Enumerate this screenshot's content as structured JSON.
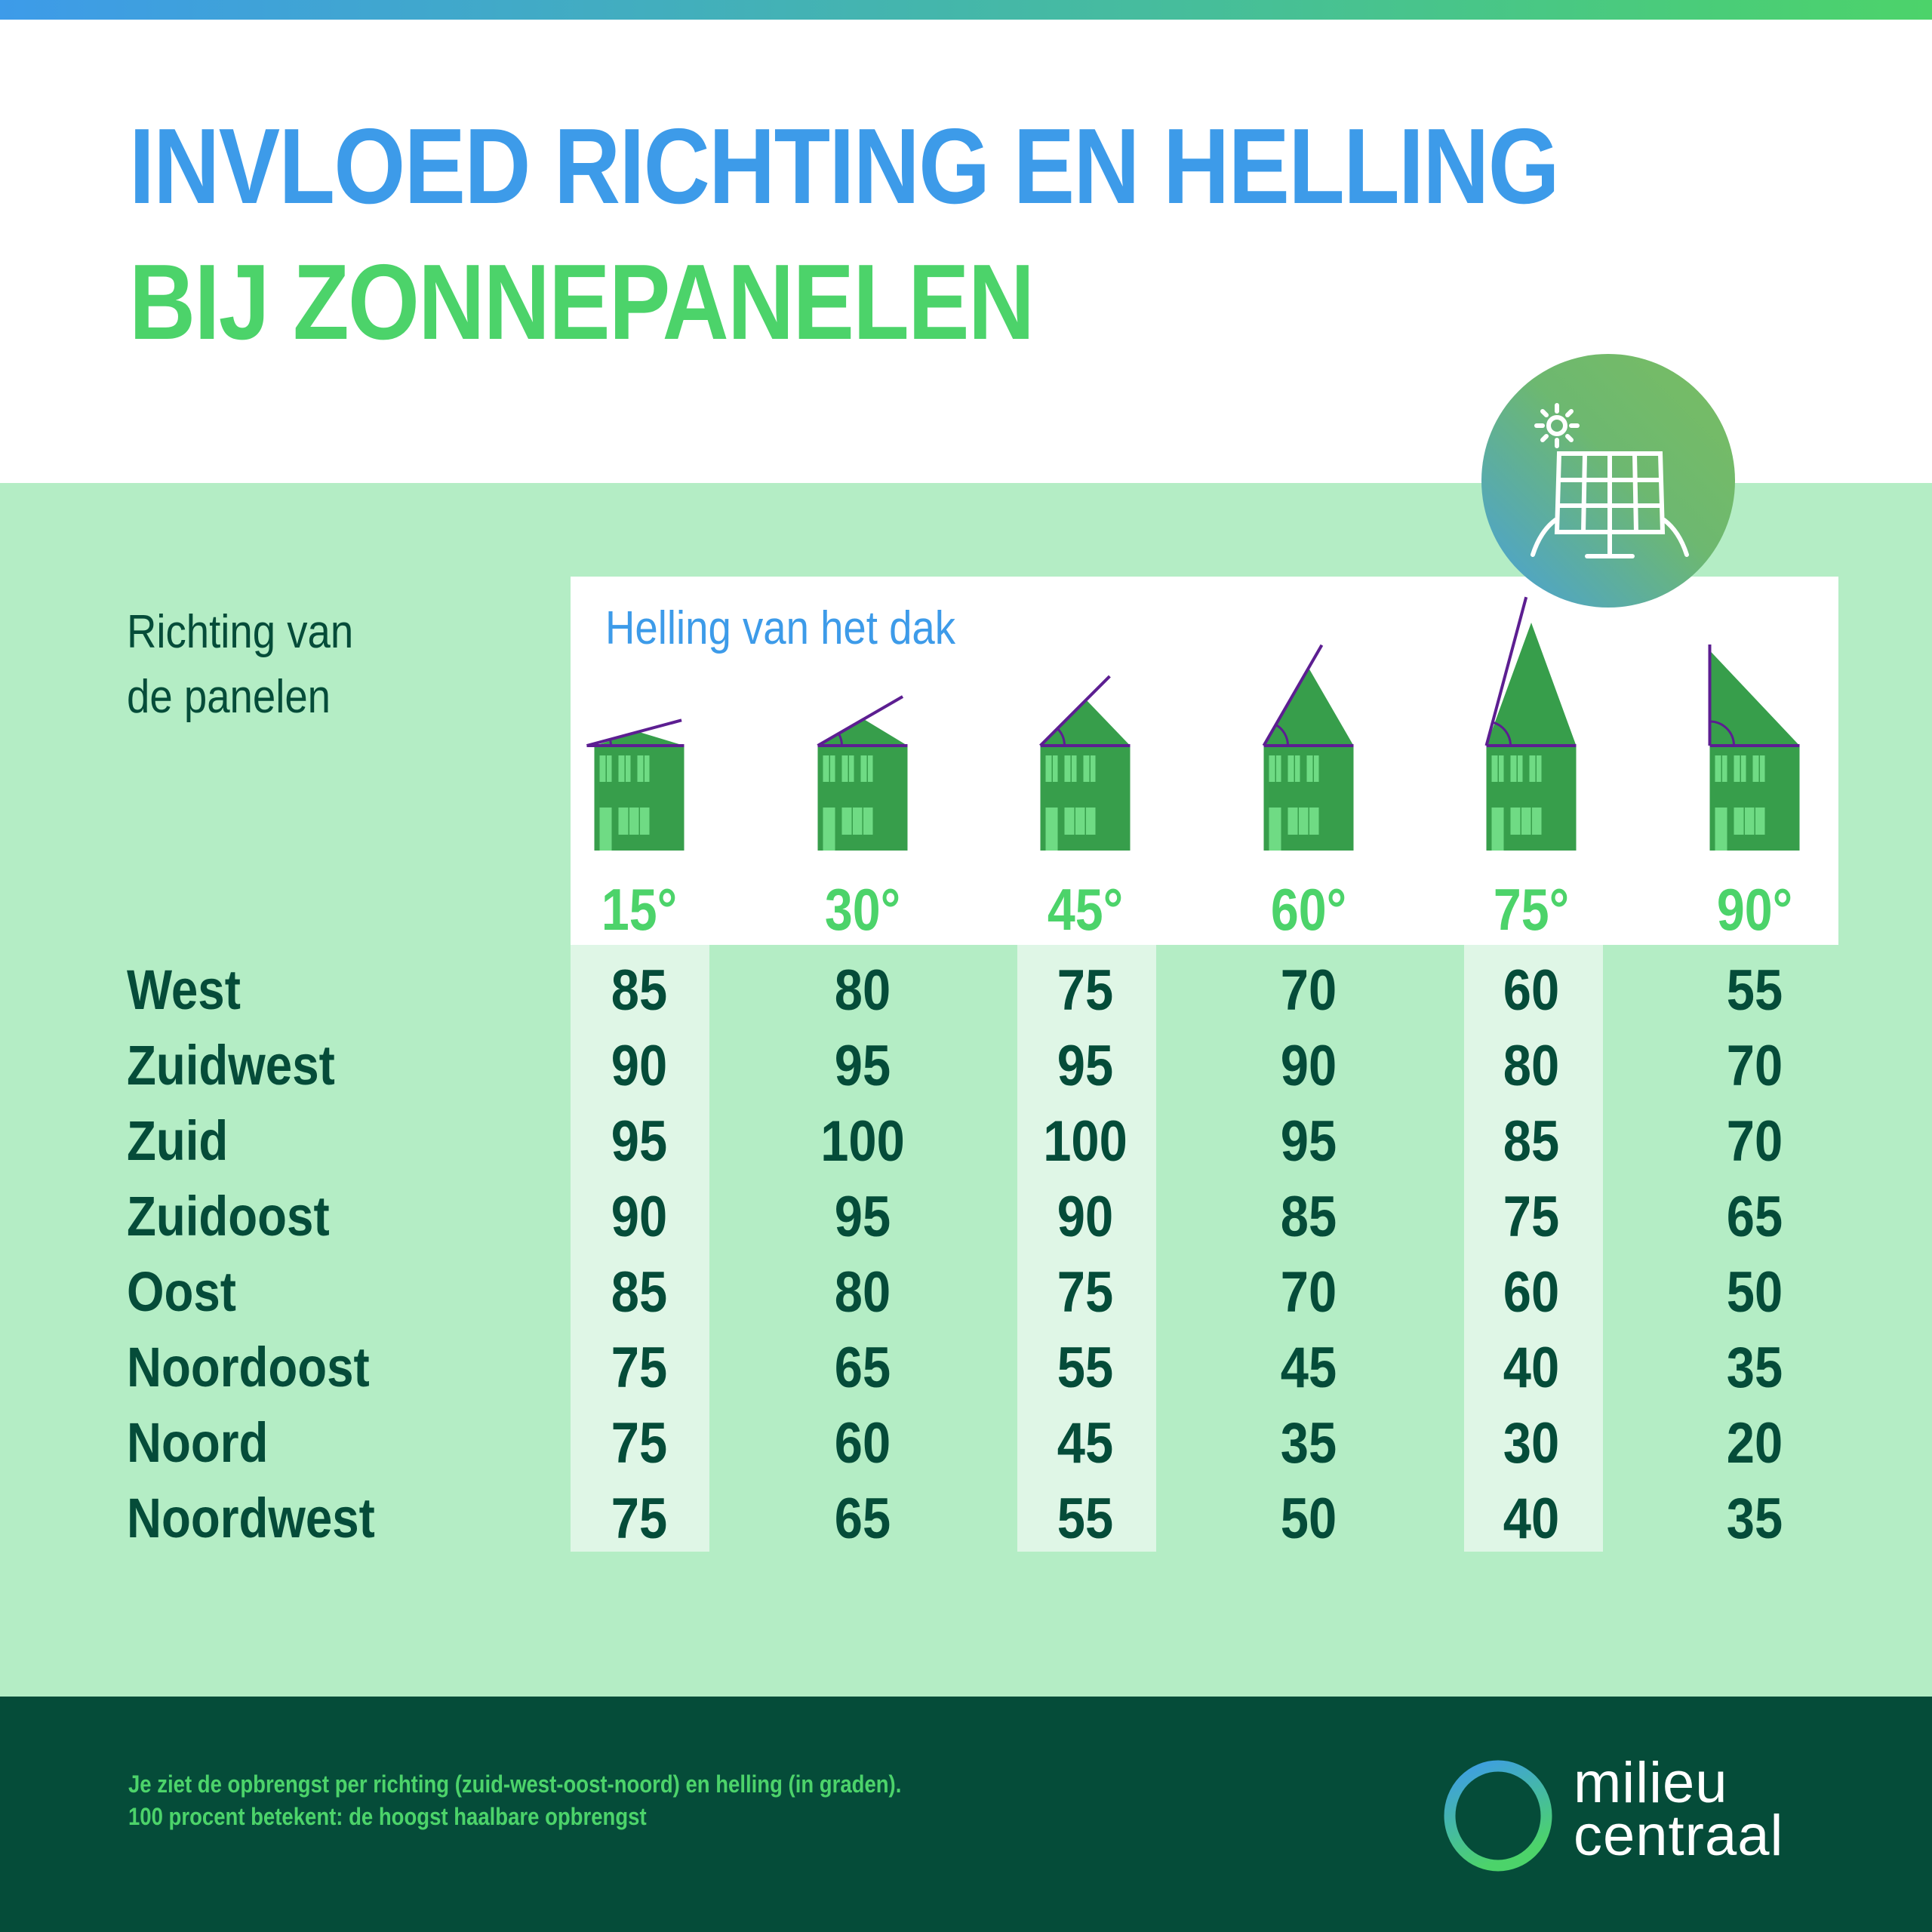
{
  "header": {
    "title_line1": "INVLOED RICHTING EN HELLING",
    "title_line2": "BIJ ZONNEPANELEN"
  },
  "icons": {
    "badge": "solar-panel-sun-icon",
    "logo": "ring-logo-icon"
  },
  "colors": {
    "blue": "#3d9be9",
    "green": "#4cd36a",
    "dark_green": "#054c39",
    "light_green_bg": "#b4edc5",
    "house": "#379e4b",
    "angle_line": "#5c1e91"
  },
  "table": {
    "row_header_line1": "Richting van",
    "row_header_line2": "de panelen",
    "column_header": "Helling van het dak"
  },
  "chart_data": {
    "type": "table",
    "title": "INVLOED RICHTING EN HELLING BIJ ZONNEPANELEN",
    "row_label": "Richting van de panelen",
    "column_label": "Helling van het dak",
    "columns": [
      "15°",
      "30°",
      "45°",
      "60°",
      "75°",
      "90°"
    ],
    "rows": [
      {
        "label": "West",
        "values": [
          85,
          80,
          75,
          70,
          60,
          55
        ]
      },
      {
        "label": "Zuidwest",
        "values": [
          90,
          95,
          95,
          90,
          80,
          70
        ]
      },
      {
        "label": "Zuid",
        "values": [
          95,
          100,
          100,
          95,
          85,
          70
        ]
      },
      {
        "label": "Zuidoost",
        "values": [
          90,
          95,
          90,
          85,
          75,
          65
        ]
      },
      {
        "label": "Oost",
        "values": [
          85,
          80,
          75,
          70,
          60,
          50
        ]
      },
      {
        "label": "Noordoost",
        "values": [
          75,
          65,
          55,
          45,
          40,
          35
        ]
      },
      {
        "label": "Noord",
        "values": [
          75,
          60,
          45,
          35,
          30,
          20
        ]
      },
      {
        "label": "Noordwest",
        "values": [
          75,
          65,
          55,
          50,
          40,
          35
        ]
      }
    ]
  },
  "footer": {
    "note_line1": "Je ziet de opbrengst per richting (zuid-west-oost-noord) en helling (in graden).",
    "note_line2": "100 procent betekent: de hoogst haalbare opbrengst",
    "logo_line1": "milieu",
    "logo_line2": "centraal"
  }
}
